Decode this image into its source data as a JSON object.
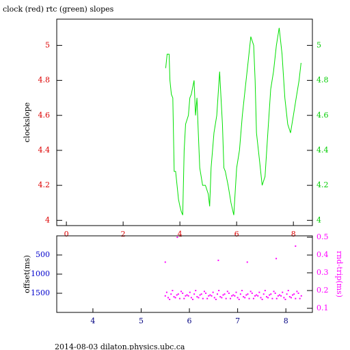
{
  "chart_data": [
    {
      "type": "line",
      "title": "clock (red) rtc (green) slopes",
      "ylabel": "clockslope",
      "xlim": [
        -0.34,
        8.67
      ],
      "ylim": [
        3.97,
        5.15
      ],
      "xticks": [
        0,
        2,
        4,
        6,
        8
      ],
      "yticks": [
        4,
        4.2,
        4.4,
        4.6,
        4.8,
        5
      ],
      "y2ticks": [
        4,
        4.2,
        4.4,
        4.6,
        4.8,
        5
      ],
      "xtick_color": "#dd0000",
      "ytick_color": "#dd0000",
      "y2tick_color": "#00cc00",
      "series": [
        {
          "color": "#00e000",
          "x": [
            3.5,
            3.55,
            3.62,
            3.65,
            3.7,
            3.75,
            3.8,
            3.85,
            3.9,
            3.95,
            4.0,
            4.05,
            4.1,
            4.15,
            4.2,
            4.3,
            4.35,
            4.4,
            4.5,
            4.55,
            4.6,
            4.65,
            4.7,
            4.75,
            4.8,
            4.9,
            5.0,
            5.05,
            5.1,
            5.2,
            5.3,
            5.4,
            5.45,
            5.5,
            5.55,
            5.6,
            5.7,
            5.8,
            5.9,
            6.0,
            6.1,
            6.2,
            6.3,
            6.4,
            6.5,
            6.6,
            6.65,
            6.7,
            6.8,
            6.9,
            7.0,
            7.1,
            7.2,
            7.3,
            7.4,
            7.5,
            7.6,
            7.7,
            7.8,
            7.9,
            8.0,
            8.1,
            8.2,
            8.27
          ],
          "values": [
            4.87,
            4.95,
            4.95,
            4.8,
            4.72,
            4.7,
            4.28,
            4.28,
            4.2,
            4.12,
            4.08,
            4.05,
            4.03,
            4.4,
            4.55,
            4.6,
            4.7,
            4.72,
            4.8,
            4.6,
            4.7,
            4.5,
            4.3,
            4.25,
            4.2,
            4.2,
            4.15,
            4.08,
            4.3,
            4.5,
            4.6,
            4.85,
            4.7,
            4.55,
            4.3,
            4.28,
            4.2,
            4.1,
            4.03,
            4.3,
            4.4,
            4.6,
            4.75,
            4.9,
            5.05,
            5.0,
            4.8,
            4.5,
            4.35,
            4.2,
            4.25,
            4.5,
            4.75,
            4.85,
            5.0,
            5.1,
            4.95,
            4.7,
            4.55,
            4.5,
            4.6,
            4.7,
            4.8,
            4.9
          ]
        }
      ]
    },
    {
      "type": "scatter",
      "ylabel": "offset(ms)",
      "y2label": "rnd-trip(ms)",
      "xlim": [
        3.25,
        8.55
      ],
      "ylim": [
        0,
        2000
      ],
      "y_inverted": true,
      "y2lim": [
        0.077,
        0.508
      ],
      "xticks": [
        4,
        5,
        6,
        7,
        8
      ],
      "yticks": [
        500,
        1000,
        1500
      ],
      "y2ticks": [
        0.1,
        0.2,
        0.3,
        0.4,
        0.5
      ],
      "xtick_color": "#000080",
      "ytick_color": "#0000cc",
      "y2tick_color": "#ff00ff",
      "series": [
        {
          "color": "#ff00ff",
          "axis": "y2",
          "x": [
            5.5,
            5.56,
            5.62,
            5.68,
            5.74,
            5.8,
            5.86,
            5.92,
            5.98,
            6.04,
            6.1,
            6.16,
            6.22,
            6.28,
            6.34,
            6.4,
            6.46,
            6.52,
            6.58,
            6.64,
            6.7,
            6.76,
            6.82,
            6.88,
            6.94,
            7,
            7.06,
            7.12,
            7.18,
            7.24,
            7.3,
            7.36,
            7.42,
            7.48,
            7.54,
            7.6,
            7.66,
            7.72,
            7.78,
            7.84,
            7.9,
            7.96,
            8.02,
            8.08,
            8.14,
            8.2,
            8.26,
            8.32,
            5.53,
            5.59,
            5.65,
            5.71,
            5.77,
            5.83,
            5.89,
            5.95,
            6.01,
            6.07,
            6.13,
            6.19,
            6.25,
            6.31,
            6.37,
            6.43,
            6.49,
            6.55,
            6.61,
            6.67,
            6.73,
            6.79,
            6.85,
            6.91,
            6.97,
            7.03,
            7.09,
            7.15,
            7.21,
            7.27,
            7.33,
            7.39,
            7.45,
            7.51,
            7.57,
            7.63,
            7.69,
            7.75,
            7.81,
            7.87,
            7.93,
            7.99,
            8.05,
            8.11,
            8.17,
            8.23,
            8.29,
            5.5,
            5.75,
            6.6,
            7.2,
            7.8,
            8.2
          ],
          "values": [
            0.17,
            0.16,
            0.18,
            0.165,
            0.175,
            0.155,
            0.185,
            0.17,
            0.17,
            0.16,
            0.18,
            0.165,
            0.175,
            0.155,
            0.185,
            0.17,
            0.17,
            0.16,
            0.18,
            0.165,
            0.175,
            0.155,
            0.185,
            0.17,
            0.17,
            0.16,
            0.18,
            0.165,
            0.175,
            0.155,
            0.185,
            0.17,
            0.17,
            0.16,
            0.18,
            0.165,
            0.175,
            0.155,
            0.185,
            0.17,
            0.17,
            0.16,
            0.18,
            0.165,
            0.175,
            0.155,
            0.185,
            0.17,
            0.19,
            0.15,
            0.2,
            0.16,
            0.18,
            0.195,
            0.155,
            0.175,
            0.19,
            0.15,
            0.2,
            0.16,
            0.18,
            0.195,
            0.155,
            0.175,
            0.19,
            0.15,
            0.2,
            0.16,
            0.18,
            0.195,
            0.155,
            0.175,
            0.19,
            0.15,
            0.2,
            0.16,
            0.18,
            0.195,
            0.155,
            0.175,
            0.19,
            0.15,
            0.2,
            0.16,
            0.18,
            0.195,
            0.155,
            0.175,
            0.19,
            0.15,
            0.2,
            0.16,
            0.18,
            0.195,
            0.155,
            0.36,
            0.5,
            0.37,
            0.36,
            0.38,
            0.45
          ]
        }
      ]
    }
  ],
  "footer": "2014-08-03 dilaton.physics.ubc.ca"
}
